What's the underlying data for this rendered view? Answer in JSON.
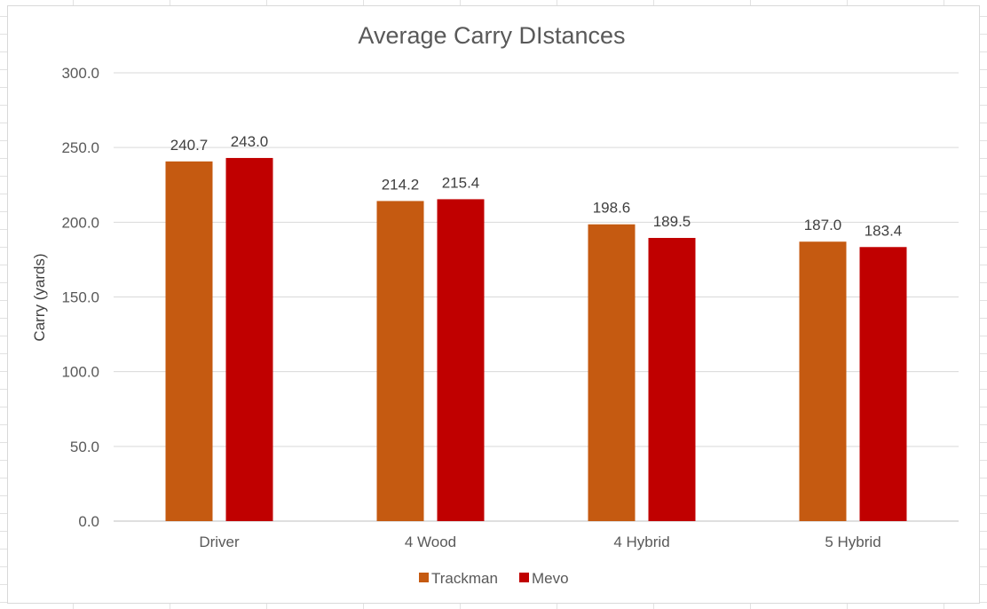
{
  "chart_data": {
    "type": "bar",
    "title": "Average Carry DIstances",
    "xlabel": "",
    "ylabel": "Carry (yards)",
    "ylim": [
      0,
      300
    ],
    "yticks": [
      "0.0",
      "50.0",
      "100.0",
      "150.0",
      "200.0",
      "250.0",
      "300.0"
    ],
    "categories": [
      "Driver",
      "4 Wood",
      "4 Hybrid",
      "5 Hybrid"
    ],
    "series": [
      {
        "name": "Trackman",
        "color": "#C55A11",
        "values": [
          240.7,
          214.2,
          198.6,
          187.0
        ],
        "labels": [
          "240.7",
          "214.2",
          "198.6",
          "187.0"
        ]
      },
      {
        "name": "Mevo",
        "color": "#C00000",
        "values": [
          243.0,
          215.4,
          189.5,
          183.4
        ],
        "labels": [
          "243.0",
          "215.4",
          "189.5",
          "183.4"
        ]
      }
    ],
    "legend": "bottom",
    "grid": true
  }
}
